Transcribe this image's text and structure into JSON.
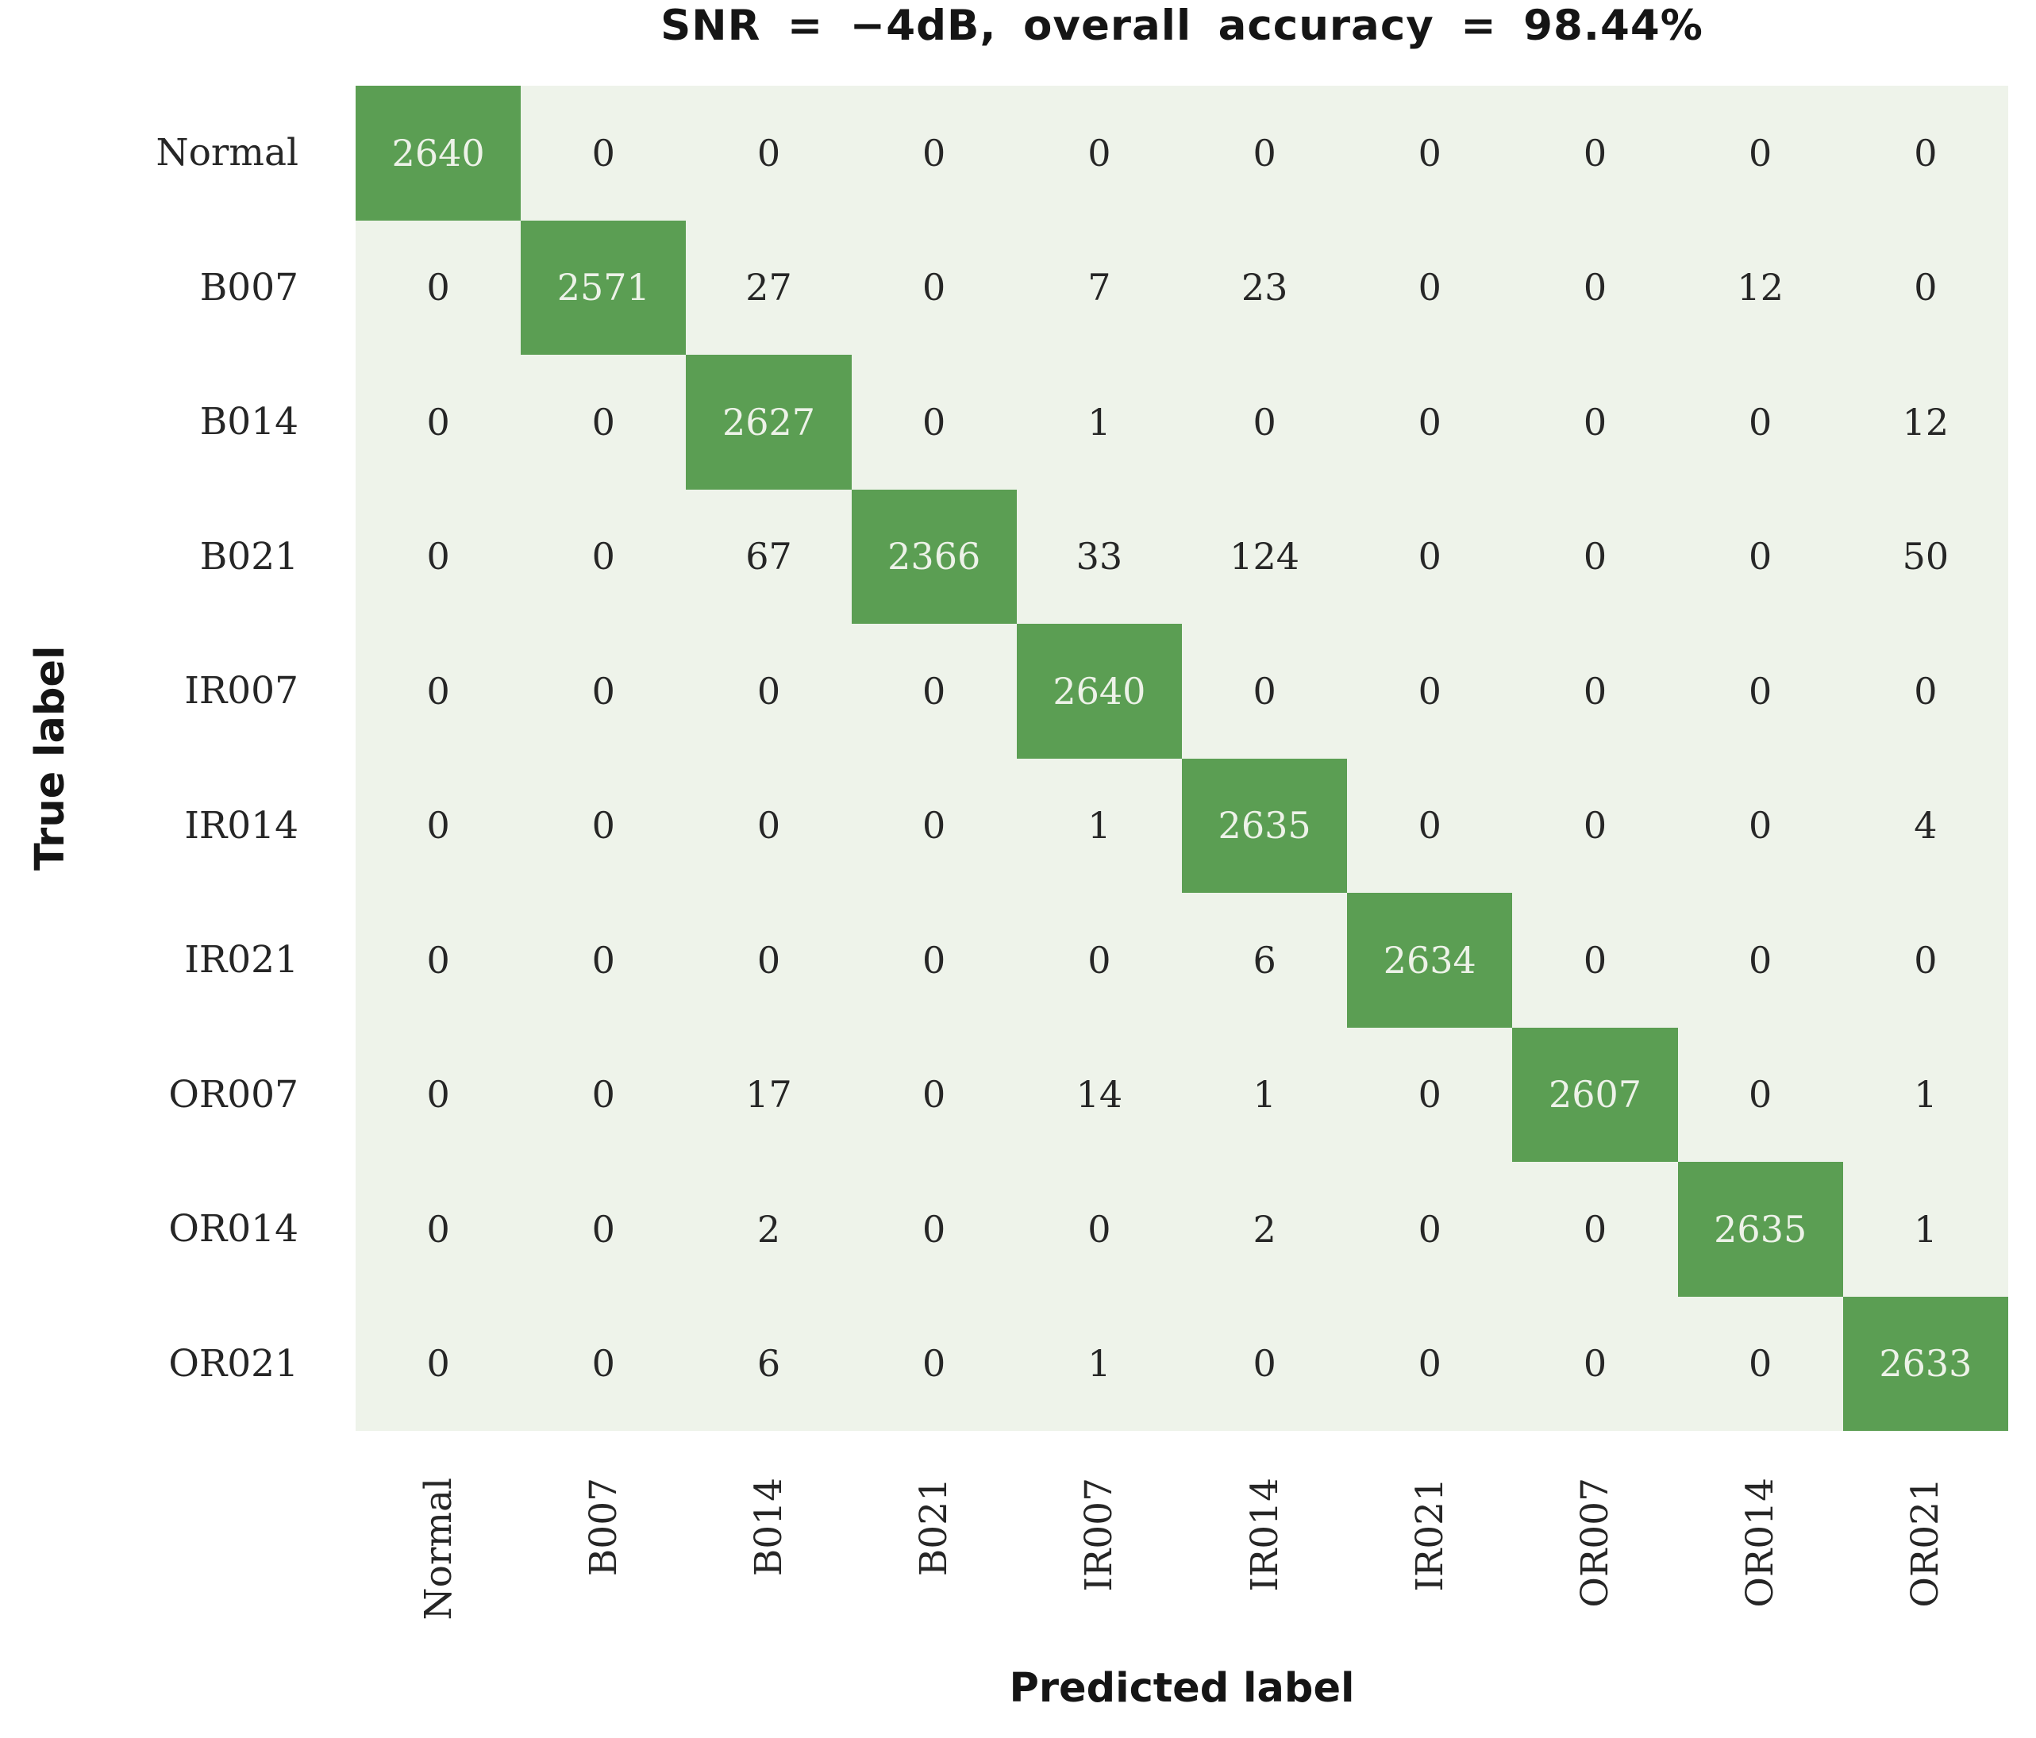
{
  "chart_data": {
    "type": "heatmap",
    "title": "SNR = −4dB, overall accuracy = 98.44%",
    "xlabel": "Predicted label",
    "ylabel": "True label",
    "x_tick_labels": [
      "Normal",
      "B007",
      "B014",
      "B021",
      "IR007",
      "IR014",
      "IR021",
      "OR007",
      "OR014",
      "OR021"
    ],
    "y_tick_labels": [
      "Normal",
      "B007",
      "B014",
      "B021",
      "IR007",
      "IR014",
      "IR021",
      "OR007",
      "OR014",
      "OR021"
    ],
    "matrix": [
      [
        2640,
        0,
        0,
        0,
        0,
        0,
        0,
        0,
        0,
        0
      ],
      [
        0,
        2571,
        27,
        0,
        7,
        23,
        0,
        0,
        12,
        0
      ],
      [
        0,
        0,
        2627,
        0,
        1,
        0,
        0,
        0,
        0,
        12
      ],
      [
        0,
        0,
        67,
        2366,
        33,
        124,
        0,
        0,
        0,
        50
      ],
      [
        0,
        0,
        0,
        0,
        2640,
        0,
        0,
        0,
        0,
        0
      ],
      [
        0,
        0,
        0,
        0,
        1,
        2635,
        0,
        0,
        0,
        4
      ],
      [
        0,
        0,
        0,
        0,
        0,
        6,
        2634,
        0,
        0,
        0
      ],
      [
        0,
        0,
        17,
        0,
        14,
        1,
        0,
        2607,
        0,
        1
      ],
      [
        0,
        0,
        2,
        0,
        0,
        2,
        0,
        0,
        2635,
        1
      ],
      [
        0,
        0,
        6,
        0,
        1,
        0,
        0,
        0,
        0,
        2633
      ]
    ],
    "overall_accuracy_pct": 98.44,
    "snr_db": -4,
    "legend": "none",
    "grid": false,
    "colors": {
      "diagonal_cell": "#5b9e53",
      "plot_background": "#eef3ea",
      "diagonal_text": "#edf2e8",
      "off_diagonal_text": "#262626",
      "title_text": "#151515"
    }
  }
}
